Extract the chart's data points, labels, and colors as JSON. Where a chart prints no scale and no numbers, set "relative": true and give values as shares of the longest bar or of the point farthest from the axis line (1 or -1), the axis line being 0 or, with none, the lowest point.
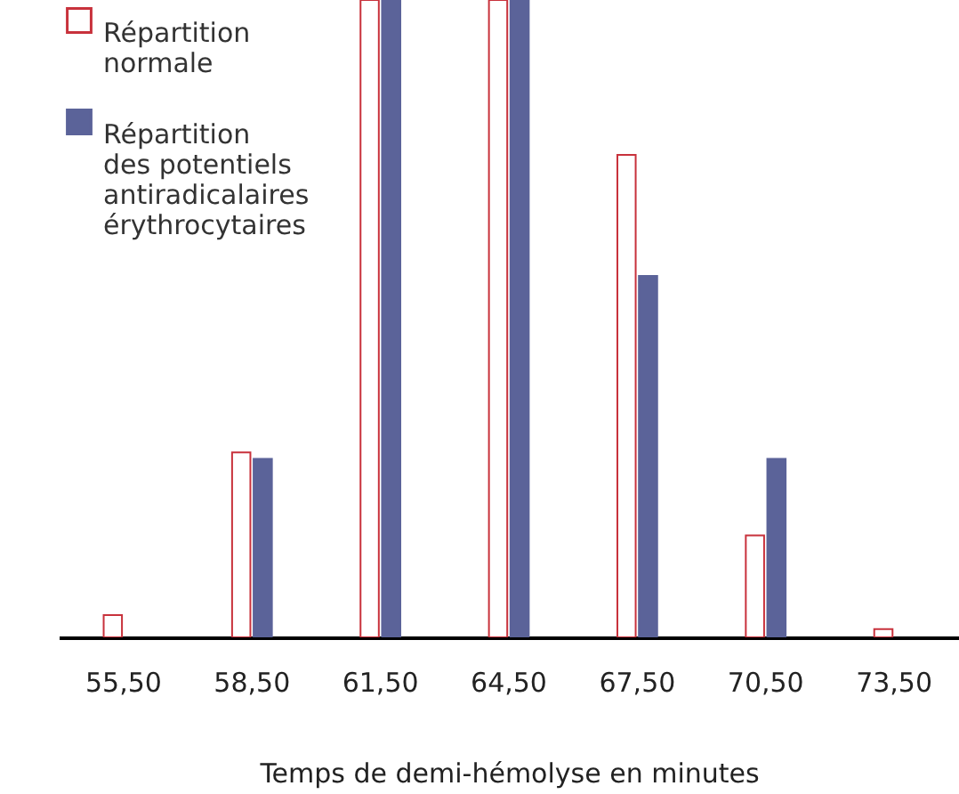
{
  "chart_data": {
    "type": "bar",
    "relative": true,
    "xlabel": "Temps de demi-hémolyse en minutes",
    "categories": [
      "55,50",
      "58,50",
      "61,50",
      "64,50",
      "67,50",
      "70,50",
      "73,50"
    ],
    "series": [
      {
        "name": "Répartition normale",
        "color": "#c8323c",
        "values": [
          0.035,
          0.29,
          1,
          1,
          0.757,
          0.16,
          0.013
        ]
      },
      {
        "name": "Répartition des potentiels antiradicalaires érythrocytaires",
        "color": "#5b6399",
        "values": [
          null,
          0.28,
          1,
          1,
          0.567,
          0.28,
          null
        ]
      }
    ],
    "legend": "top left"
  }
}
